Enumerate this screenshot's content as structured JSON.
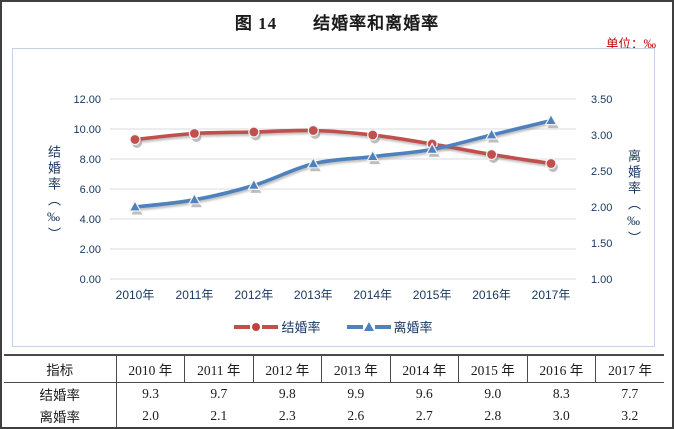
{
  "page": {
    "title": "图 14　　结婚率和离婚率",
    "unit_label": "单位：‰"
  },
  "colors": {
    "marriage_series": "#c0504d",
    "divorce_series": "#4f81bd",
    "axis_text": "#17365d",
    "unit_text": "#c00000",
    "gridline": "#d9dcde",
    "frame_border": "#c3d4e7"
  },
  "chart_data": {
    "type": "line",
    "title": "图 14 结婚率和离婚率",
    "categories": [
      "2010年",
      "2011年",
      "2012年",
      "2013年",
      "2014年",
      "2015年",
      "2016年",
      "2017年"
    ],
    "series": [
      {
        "name": "结婚率",
        "axis": "left",
        "color": "#c0504d",
        "marker": "circle",
        "values": [
          9.3,
          9.7,
          9.8,
          9.9,
          9.6,
          9.0,
          8.3,
          7.7
        ]
      },
      {
        "name": "离婚率",
        "axis": "right",
        "color": "#4f81bd",
        "marker": "triangle",
        "values": [
          2.0,
          2.1,
          2.3,
          2.6,
          2.7,
          2.8,
          3.0,
          3.2
        ]
      }
    ],
    "left_axis": {
      "title": "结婚率（‰）",
      "min": 0,
      "max": 12,
      "ticks": [
        "0.00",
        "2.00",
        "4.00",
        "6.00",
        "8.00",
        "10.00",
        "12.00"
      ]
    },
    "right_axis": {
      "title": "离婚率（‰）",
      "min": 1,
      "max": 3.5,
      "ticks": [
        "1.00",
        "1.50",
        "2.00",
        "2.50",
        "3.00",
        "3.50"
      ]
    },
    "grid": true,
    "legend_position": "bottom"
  },
  "legend": {
    "items": [
      {
        "label": "结婚率",
        "color": "#c0504d",
        "marker": "circle"
      },
      {
        "label": "离婚率",
        "color": "#4f81bd",
        "marker": "triangle"
      }
    ]
  },
  "table": {
    "header": [
      "指标",
      "2010 年",
      "2011 年",
      "2012 年",
      "2013 年",
      "2014 年",
      "2015 年",
      "2016 年",
      "2017 年"
    ],
    "rows": [
      {
        "label": "结婚率",
        "values": [
          "9.3",
          "9.7",
          "9.8",
          "9.9",
          "9.6",
          "9.0",
          "8.3",
          "7.7"
        ]
      },
      {
        "label": "离婚率",
        "values": [
          "2.0",
          "2.1",
          "2.3",
          "2.6",
          "2.7",
          "2.8",
          "3.0",
          "3.2"
        ]
      }
    ]
  }
}
